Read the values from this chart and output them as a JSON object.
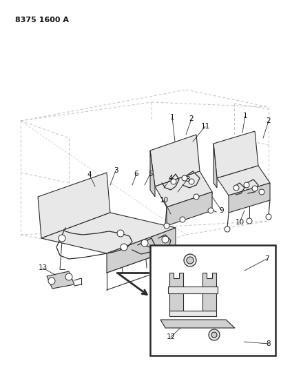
{
  "title_code": "8375 1600 A",
  "bg_color": "#ffffff",
  "line_color": "#2a2a2a",
  "dashed_color": "#c0c0c0",
  "fill_light": "#e8e8e8",
  "fill_mid": "#d0d0d0",
  "fill_dark": "#b8b8b8",
  "fig_width": 4.08,
  "fig_height": 5.33,
  "dpi": 100
}
